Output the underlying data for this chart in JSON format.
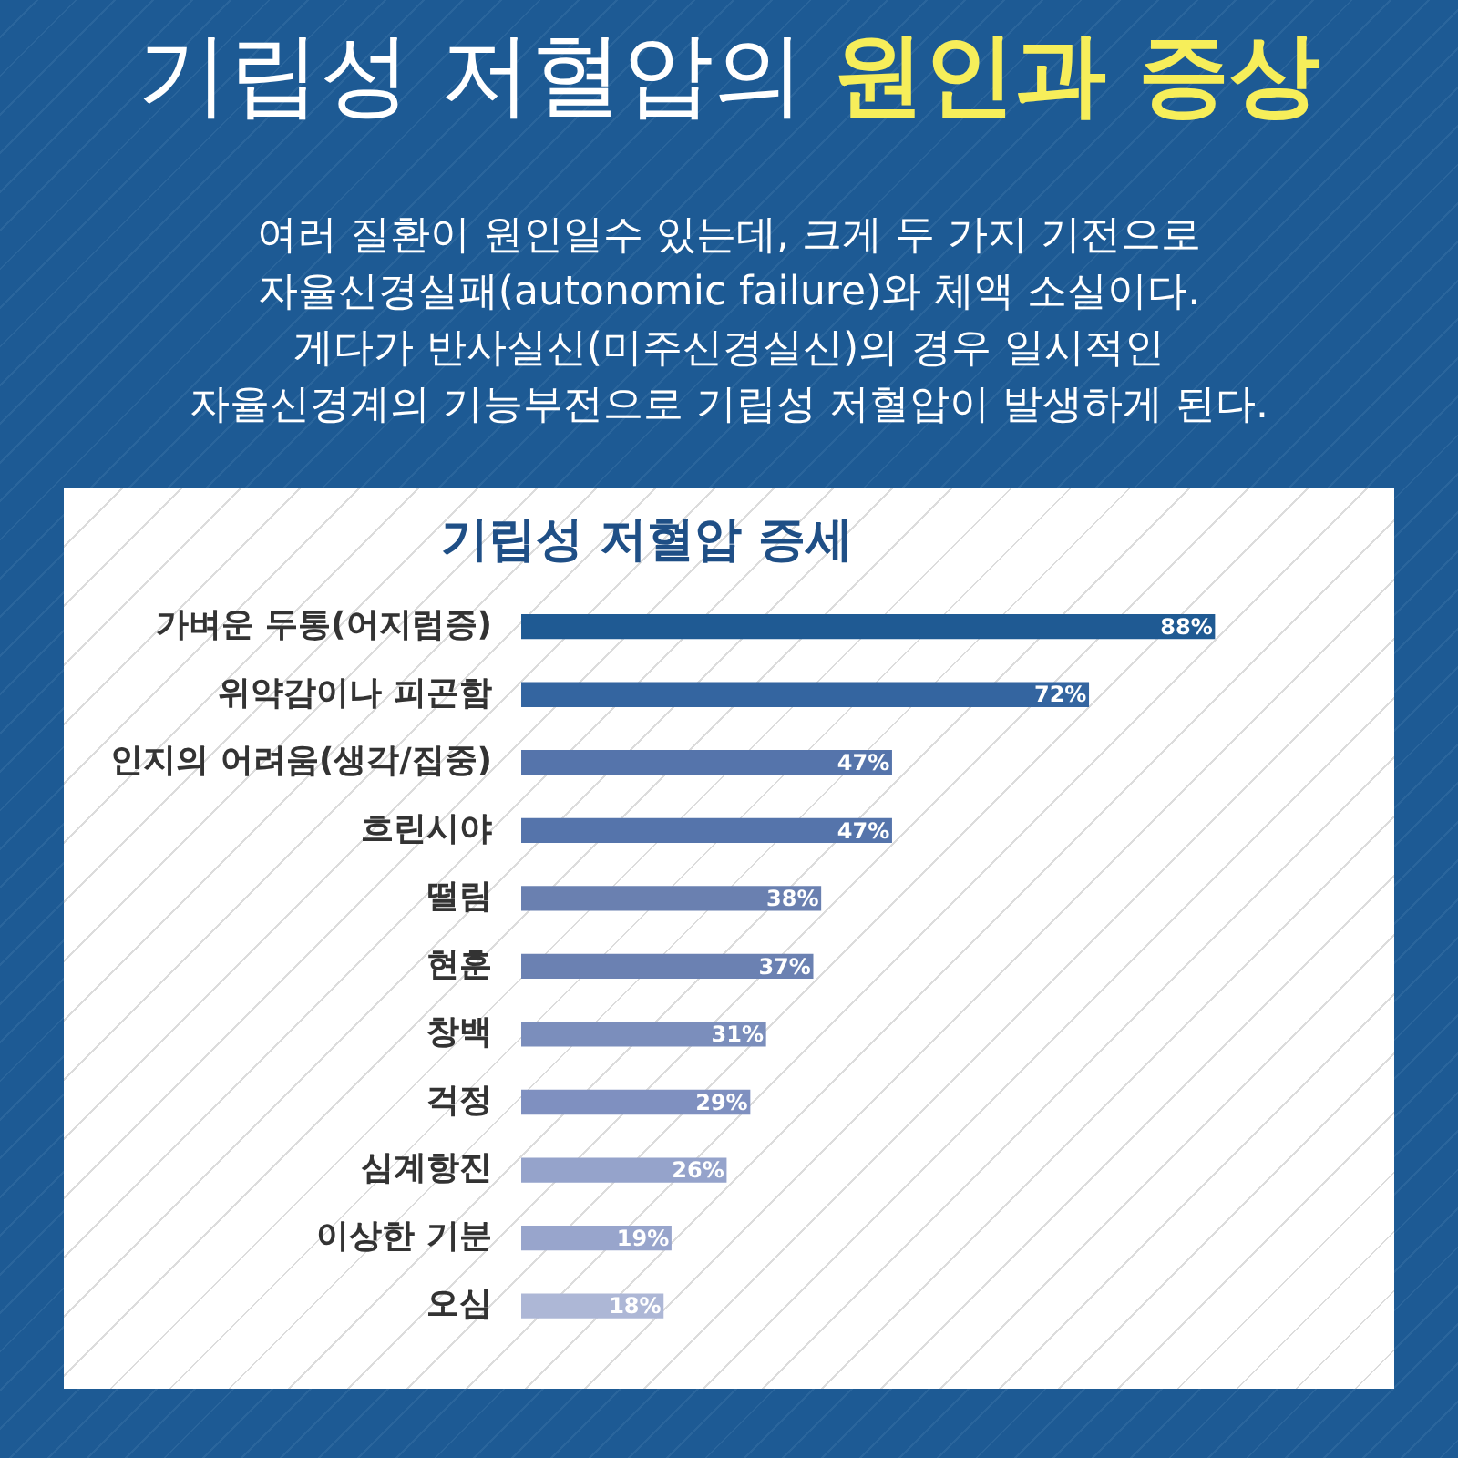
{
  "chart_data": {
    "type": "bar",
    "orientation": "horizontal",
    "title": "기립성 저혈압의 원인과 증상",
    "subtitle": "여러 질환이 원인일수 있는데, 크게 두 가지 기전으로\n자율신경실패(autonomic failure)와 체액 소실이다.\n게다가 반사실신(미주신경실신)의 경우 일시적인\n자율신경계의 기능부전으로 기립성 저혈압이 발생하게 된다.",
    "annotations": [
      "기립성 저혈압 증세"
    ],
    "categories": [
      "가벼운 두통(어지럼증)",
      "위약감이나 피곤함",
      "인지의 어려움(생각/집중)",
      "흐린시야",
      "떨림",
      "현훈",
      "창백",
      "걱정",
      "심계항진",
      "이상한 기분",
      "오심"
    ],
    "values": [
      88,
      72,
      47,
      47,
      38,
      37,
      31,
      29,
      26,
      19,
      18
    ],
    "value_labels": [
      "88%",
      "72%",
      "47%",
      "47%",
      "38%",
      "37%",
      "31%",
      "29%",
      "26%",
      "19%",
      "18%"
    ],
    "colors": [
      "#1f5a93",
      "#3465a0",
      "#5574ab",
      "#5574ab",
      "#6a80b0",
      "#6b81b2",
      "#7b8ebc",
      "#7f90c0",
      "#95a3cb",
      "#98a5cc",
      "#adb7d6"
    ],
    "grid": false
  }
}
